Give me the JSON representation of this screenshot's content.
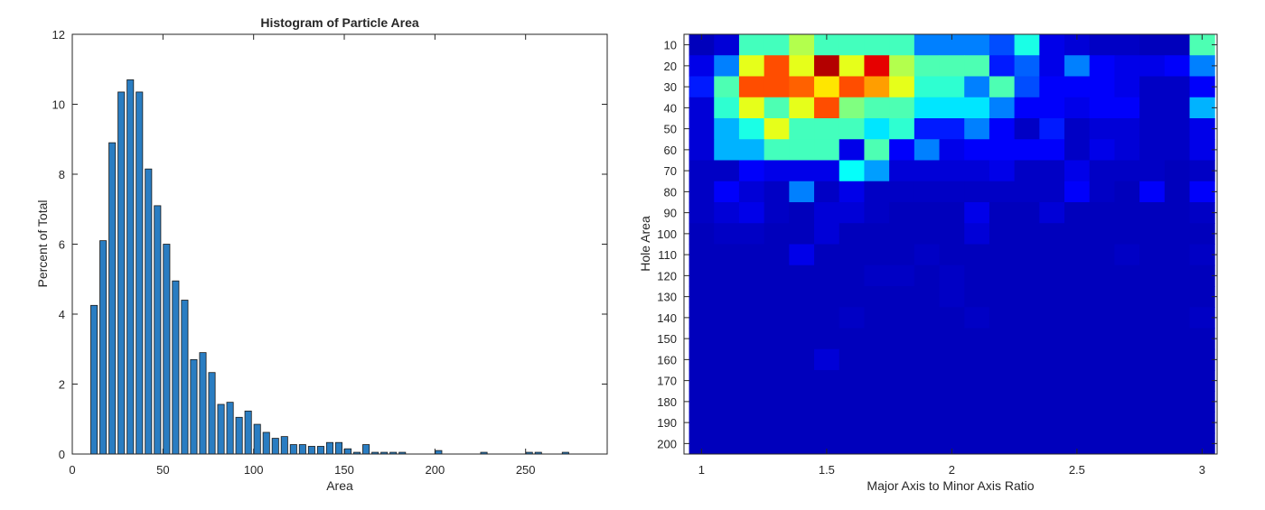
{
  "chart_data": [
    {
      "type": "bar",
      "title": "Histogram of Particle Area",
      "xlabel": "Area",
      "ylabel": "Percent of Total",
      "xlim": [
        0,
        295
      ],
      "ylim": [
        0,
        12
      ],
      "xticks": [
        0,
        50,
        100,
        150,
        200,
        250
      ],
      "yticks": [
        0,
        2,
        4,
        6,
        8,
        10,
        12
      ],
      "bar_color": "#2a7dc2",
      "bin_width": 5,
      "bin_centers": [
        12,
        17,
        22,
        27,
        32,
        37,
        42,
        47,
        52,
        57,
        62,
        67,
        72,
        77,
        82,
        87,
        92,
        97,
        102,
        107,
        112,
        117,
        122,
        127,
        132,
        137,
        142,
        147,
        152,
        157,
        162,
        167,
        172,
        177,
        182,
        202,
        227,
        252,
        257,
        272
      ],
      "values": [
        4.25,
        6.1,
        8.9,
        10.35,
        10.7,
        10.35,
        8.15,
        7.1,
        6.0,
        4.95,
        4.4,
        2.7,
        2.9,
        2.33,
        1.42,
        1.48,
        1.05,
        1.23,
        0.85,
        0.62,
        0.45,
        0.5,
        0.27,
        0.27,
        0.22,
        0.22,
        0.33,
        0.33,
        0.15,
        0.05,
        0.27,
        0.05,
        0.05,
        0.05,
        0.05,
        0.1,
        0.05,
        0.05,
        0.05,
        0.05
      ]
    },
    {
      "type": "heatmap",
      "xlabel": "Major Axis to Minor Axis Ratio",
      "ylabel": "Hole Area",
      "xlim": [
        0.93,
        3.06
      ],
      "xticks": [
        1,
        1.5,
        2,
        2.5,
        3
      ],
      "xtick_labels": [
        "1",
        "1.5",
        "2",
        "2.5",
        "3"
      ],
      "y_categories": [
        "10",
        "20",
        "30",
        "40",
        "50",
        "60",
        "70",
        "80",
        "90",
        "100",
        "110",
        "120",
        "130",
        "140",
        "150",
        "160",
        "170",
        "180",
        "190",
        "200"
      ],
      "x_bins": [
        1.0,
        1.1,
        1.2,
        1.3,
        1.4,
        1.5,
        1.6,
        1.7,
        1.8,
        1.9,
        2.0,
        2.1,
        2.2,
        2.3,
        2.4,
        2.5,
        2.6,
        2.7,
        2.8,
        2.9,
        3.0
      ],
      "colormap": [
        "#00008f",
        "#0000ff",
        "#0080ff",
        "#00ffff",
        "#80ff80",
        "#ffff00",
        "#ff8000",
        "#ff0000",
        "#800000"
      ],
      "matrix": [
        [
          0.05,
          0.08,
          0.44,
          0.44,
          0.55,
          0.44,
          0.44,
          0.44,
          0.44,
          0.25,
          0.25,
          0.25,
          0.2,
          0.4,
          0.1,
          0.08,
          0.06,
          0.06,
          0.05,
          0.05,
          0.45
        ],
        [
          0.1,
          0.25,
          0.6,
          0.8,
          0.6,
          0.95,
          0.6,
          0.9,
          0.55,
          0.45,
          0.45,
          0.45,
          0.15,
          0.22,
          0.1,
          0.25,
          0.12,
          0.1,
          0.1,
          0.12,
          0.25
        ],
        [
          0.15,
          0.45,
          0.8,
          0.8,
          0.78,
          0.65,
          0.8,
          0.72,
          0.6,
          0.42,
          0.42,
          0.25,
          0.45,
          0.2,
          0.12,
          0.12,
          0.12,
          0.1,
          0.06,
          0.06,
          0.12
        ],
        [
          0.08,
          0.42,
          0.6,
          0.45,
          0.6,
          0.8,
          0.5,
          0.45,
          0.45,
          0.35,
          0.35,
          0.35,
          0.25,
          0.12,
          0.12,
          0.1,
          0.12,
          0.12,
          0.06,
          0.06,
          0.3
        ],
        [
          0.08,
          0.3,
          0.4,
          0.6,
          0.44,
          0.44,
          0.44,
          0.35,
          0.42,
          0.15,
          0.15,
          0.25,
          0.12,
          0.06,
          0.15,
          0.06,
          0.08,
          0.08,
          0.06,
          0.06,
          0.1
        ],
        [
          0.08,
          0.3,
          0.3,
          0.44,
          0.44,
          0.44,
          0.1,
          0.45,
          0.12,
          0.25,
          0.1,
          0.12,
          0.12,
          0.12,
          0.12,
          0.06,
          0.1,
          0.08,
          0.06,
          0.06,
          0.1
        ],
        [
          0.06,
          0.06,
          0.12,
          0.1,
          0.1,
          0.1,
          0.38,
          0.28,
          0.08,
          0.08,
          0.08,
          0.08,
          0.1,
          0.06,
          0.06,
          0.1,
          0.06,
          0.06,
          0.06,
          0.05,
          0.06
        ],
        [
          0.06,
          0.12,
          0.08,
          0.06,
          0.25,
          0.06,
          0.1,
          0.06,
          0.06,
          0.06,
          0.06,
          0.06,
          0.06,
          0.06,
          0.06,
          0.12,
          0.06,
          0.05,
          0.12,
          0.05,
          0.12
        ],
        [
          0.06,
          0.08,
          0.1,
          0.06,
          0.05,
          0.08,
          0.08,
          0.06,
          0.05,
          0.05,
          0.05,
          0.1,
          0.05,
          0.05,
          0.08,
          0.05,
          0.05,
          0.05,
          0.05,
          0.05,
          0.06
        ],
        [
          0.05,
          0.06,
          0.06,
          0.05,
          0.05,
          0.08,
          0.05,
          0.05,
          0.05,
          0.05,
          0.05,
          0.08,
          0.05,
          0.05,
          0.05,
          0.05,
          0.05,
          0.05,
          0.05,
          0.05,
          0.05
        ],
        [
          0.05,
          0.05,
          0.05,
          0.05,
          0.1,
          0.05,
          0.05,
          0.05,
          0.05,
          0.06,
          0.05,
          0.05,
          0.05,
          0.05,
          0.05,
          0.05,
          0.05,
          0.06,
          0.05,
          0.05,
          0.06
        ],
        [
          0.05,
          0.05,
          0.05,
          0.05,
          0.05,
          0.05,
          0.05,
          0.06,
          0.06,
          0.05,
          0.06,
          0.05,
          0.05,
          0.05,
          0.05,
          0.05,
          0.05,
          0.05,
          0.05,
          0.05,
          0.05
        ],
        [
          0.05,
          0.05,
          0.05,
          0.05,
          0.05,
          0.05,
          0.05,
          0.05,
          0.05,
          0.05,
          0.06,
          0.05,
          0.05,
          0.05,
          0.05,
          0.05,
          0.05,
          0.05,
          0.05,
          0.05,
          0.05
        ],
        [
          0.05,
          0.05,
          0.05,
          0.05,
          0.05,
          0.05,
          0.06,
          0.05,
          0.05,
          0.05,
          0.05,
          0.06,
          0.05,
          0.05,
          0.05,
          0.05,
          0.05,
          0.05,
          0.05,
          0.05,
          0.06
        ],
        [
          0.05,
          0.05,
          0.05,
          0.05,
          0.05,
          0.05,
          0.05,
          0.05,
          0.05,
          0.05,
          0.05,
          0.05,
          0.05,
          0.05,
          0.05,
          0.05,
          0.05,
          0.05,
          0.05,
          0.05,
          0.05
        ],
        [
          0.05,
          0.05,
          0.05,
          0.05,
          0.05,
          0.08,
          0.05,
          0.05,
          0.05,
          0.05,
          0.05,
          0.05,
          0.05,
          0.05,
          0.05,
          0.05,
          0.05,
          0.05,
          0.05,
          0.05,
          0.05
        ],
        [
          0.05,
          0.05,
          0.05,
          0.05,
          0.05,
          0.05,
          0.05,
          0.05,
          0.05,
          0.05,
          0.05,
          0.05,
          0.05,
          0.05,
          0.05,
          0.05,
          0.05,
          0.05,
          0.05,
          0.05,
          0.05
        ],
        [
          0.05,
          0.05,
          0.05,
          0.05,
          0.05,
          0.05,
          0.05,
          0.05,
          0.05,
          0.05,
          0.05,
          0.05,
          0.05,
          0.05,
          0.05,
          0.05,
          0.05,
          0.05,
          0.05,
          0.05,
          0.05
        ],
        [
          0.05,
          0.05,
          0.05,
          0.05,
          0.05,
          0.05,
          0.05,
          0.05,
          0.05,
          0.05,
          0.05,
          0.05,
          0.05,
          0.05,
          0.05,
          0.05,
          0.05,
          0.05,
          0.05,
          0.05,
          0.05
        ],
        [
          0.05,
          0.05,
          0.05,
          0.05,
          0.05,
          0.05,
          0.05,
          0.05,
          0.05,
          0.05,
          0.05,
          0.05,
          0.05,
          0.05,
          0.05,
          0.05,
          0.05,
          0.05,
          0.05,
          0.05,
          0.05
        ]
      ]
    }
  ]
}
